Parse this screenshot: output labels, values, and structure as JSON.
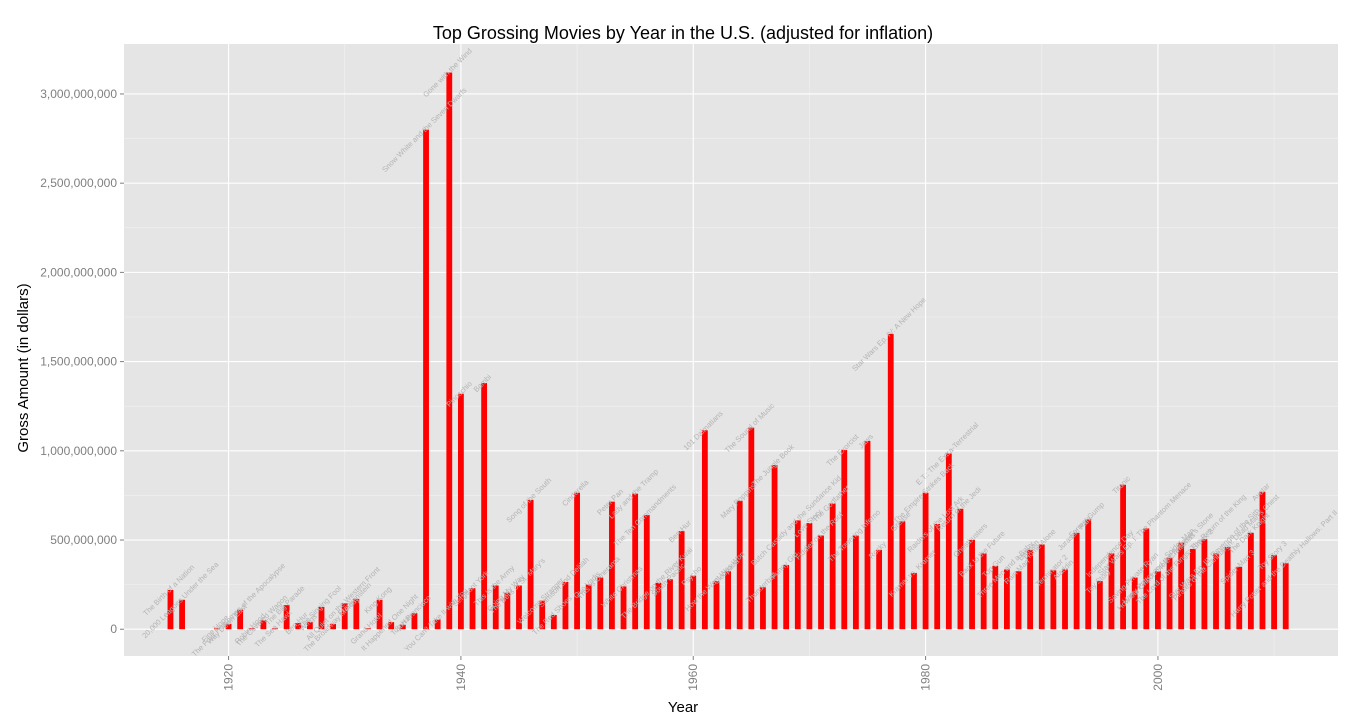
{
  "chart_data": {
    "type": "bar",
    "title": "Top Grossing Movies by Year in the U.S. (adjusted for inflation)",
    "xlabel": "Year",
    "ylabel": "Gross Amount (in dollars)",
    "xlim": [
      1911.0,
      2015.5
    ],
    "ylim": [
      -150000000,
      3280000000
    ],
    "x_ticks": [
      1920,
      1940,
      1960,
      1980,
      2000
    ],
    "x_tick_labels": [
      "1920",
      "1940",
      "1960",
      "1980",
      "2000"
    ],
    "y_ticks": [
      0,
      500000000,
      1000000000,
      1500000000,
      2000000000,
      2500000000,
      3000000000
    ],
    "y_tick_labels": [
      "0",
      "500,000,000",
      "1,000,000,000",
      "1,500,000,000",
      "2,000,000,000",
      "2,500,000,000",
      "3,000,000,000"
    ],
    "grid": true,
    "bar_color": "#ff0000",
    "panel_color": "#e5e5e5",
    "series": [
      {
        "x": [
          1915,
          1916,
          1919,
          1920,
          1921,
          1922,
          1923,
          1924,
          1925,
          1926,
          1927,
          1928,
          1929,
          1930,
          1931,
          1932,
          1933,
          1934,
          1935,
          1936,
          1937,
          1938,
          1939,
          1940,
          1941,
          1942,
          1943,
          1944,
          1945,
          1946,
          1947,
          1948,
          1949,
          1950,
          1951,
          1952,
          1953,
          1954,
          1955,
          1956,
          1957,
          1958,
          1959,
          1960,
          1961,
          1962,
          1963,
          1964,
          1965,
          1966,
          1967,
          1968,
          1969,
          1970,
          1971,
          1972,
          1973,
          1974,
          1975,
          1976,
          1977,
          1978,
          1979,
          1980,
          1981,
          1982,
          1983,
          1984,
          1985,
          1986,
          1987,
          1988,
          1989,
          1990,
          1991,
          1992,
          1993,
          1994,
          1995,
          1996,
          1997,
          1998,
          1999,
          2000,
          2001,
          2002,
          2003,
          2004,
          2005,
          2006,
          2007,
          2008,
          2009,
          2010,
          2011
        ],
        "values": [
          220000000,
          165000000,
          5000000,
          30000000,
          110000000,
          5000000,
          50000000,
          5000000,
          135000000,
          35000000,
          40000000,
          125000000,
          30000000,
          145000000,
          170000000,
          5000000,
          165000000,
          40000000,
          25000000,
          90000000,
          2800000000,
          55000000,
          3120000000,
          1320000000,
          230000000,
          1380000000,
          245000000,
          205000000,
          245000000,
          725000000,
          160000000,
          80000000,
          265000000,
          765000000,
          250000000,
          290000000,
          715000000,
          240000000,
          760000000,
          640000000,
          260000000,
          280000000,
          550000000,
          300000000,
          1115000000,
          270000000,
          325000000,
          720000000,
          1130000000,
          235000000,
          920000000,
          360000000,
          610000000,
          595000000,
          525000000,
          705000000,
          1005000000,
          525000000,
          1055000000,
          445000000,
          1655000000,
          605000000,
          315000000,
          765000000,
          590000000,
          985000000,
          675000000,
          500000000,
          425000000,
          355000000,
          335000000,
          325000000,
          445000000,
          475000000,
          330000000,
          335000000,
          540000000,
          615000000,
          270000000,
          425000000,
          810000000,
          290000000,
          565000000,
          325000000,
          400000000,
          485000000,
          450000000,
          505000000,
          425000000,
          460000000,
          350000000,
          540000000,
          770000000,
          415000000,
          370000000
        ]
      }
    ],
    "movie_labels": [
      "The Birth of a Nation",
      "20,000 Leagues Under the Sea",
      "Fine Hope",
      "Way Down East",
      "The Four Horsemen of the Apocalypse",
      "Robin Hood",
      "The Covered Wagon",
      "The Sea Hawk",
      "The Big Parade",
      "Ben-Hur",
      "Wings",
      "The Singing Fool",
      "The Broadway Melody",
      "All Quiet on the Western Front",
      "Frankenstein",
      "Grand Hotel",
      "King Kong",
      "It Happened One Night",
      "Top Hat",
      "San Francisco",
      "Snow White and the Seven Dwarfs",
      "You Can't Take It with You",
      "Gone with the Wind",
      "Pinocchio",
      "Sergeant York",
      "Bambi",
      "This Is the Army",
      "Going My Way",
      "The Bells of St. Mary's",
      "Song of the South",
      "Welcome Stranger",
      "The Red Shoes",
      "Samson and Delilah",
      "Cinderella",
      "Quo Vadis",
      "This Is Cinerama",
      "Peter Pan",
      "White Christmas",
      "Lady and the Tramp",
      "The Ten Commandments",
      "The Bridge on the River Kwai",
      "South Pacific",
      "Ben-Hur",
      "Psycho",
      "101 Dalmatians",
      "How the West Was Won",
      "Cleopatra",
      "Mary Poppins",
      "The Sound of Music",
      "Thunderball",
      "The Jungle Book",
      "Funny Girl",
      "Butch Cassidy and the Sundance Kid",
      "Love Story",
      "Fiddler on the Roof",
      "The Godfather",
      "The Exorcist",
      "The Towering Inferno",
      "Jaws",
      "Rocky",
      "Star Wars Ep. IV: A New Hope",
      "Grease",
      "Kramer vs. Kramer",
      "The Empire Strikes Back",
      "Raiders of the Lost Ark",
      "E.T.: The Extra-Terrestrial",
      "Return of the Jedi",
      "Ghostbusters",
      "Back to the Future",
      "Top Gun",
      "Three Men and a Baby",
      "Rain Man",
      "Batman",
      "Home Alone",
      "Terminator 2",
      "Aladdin",
      "Jurassic Park",
      "Forrest Gump",
      "Toy Story",
      "Independence Day",
      "Titanic",
      "Saving Private Ryan",
      "Star Wars Ep. I: The Phantom Menace",
      "How the Grinch Stole Christmas",
      "Harry Potter and the Sorcerer's Stone",
      "Spider-Man",
      "The Lord of the Rings: The Return of the King",
      "Shrek 2",
      "Star Wars Ep. III: Revenge of the Sith",
      "Pirates of the Caribbean: Dead Man's Chest",
      "Spider-Man 3",
      "The Dark Knight",
      "Avatar",
      "Toy Story 3",
      "Harry Potter and the Deathly Hallows: Part II"
    ]
  }
}
